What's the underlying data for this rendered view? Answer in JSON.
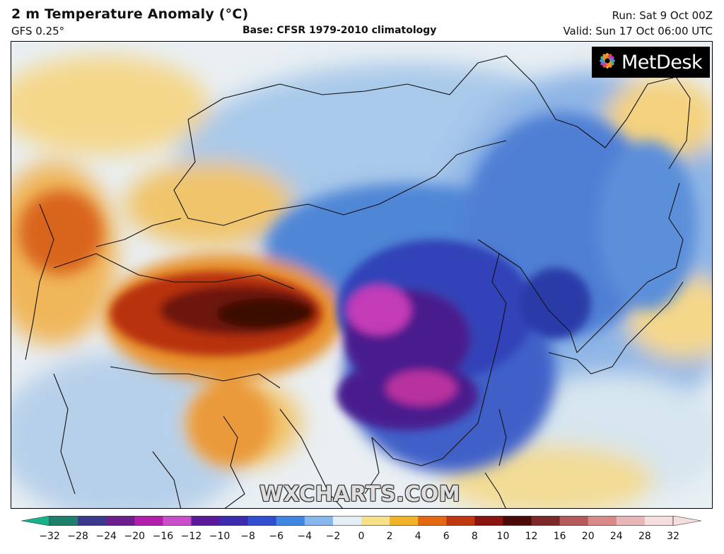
{
  "header": {
    "title": "2 m Temperature Anomaly (°C)",
    "model": "GFS 0.25°",
    "base": "Base: CFSR 1979-2010 climatology",
    "run": "Run: Sat 9 Oct 00Z",
    "valid": "Valid: Sun 17 Oct 06:00 UTC"
  },
  "logo": {
    "text": "MetDesk",
    "icon": "metdesk-flower-icon"
  },
  "watermark": "WXCHARTS.COM",
  "colorbar": {
    "ticks": [
      "−32",
      "−28",
      "−24",
      "−20",
      "−16",
      "−12",
      "−10",
      "−8",
      "−6",
      "−4",
      "−2",
      "0",
      "2",
      "4",
      "6",
      "8",
      "10",
      "12",
      "16",
      "20",
      "24",
      "28",
      "32"
    ],
    "colors": [
      "#18b28a",
      "#1f7f6a",
      "#3b3a8a",
      "#6a1f8a",
      "#b21fa8",
      "#c84fc8",
      "#5a1a9a",
      "#3d2bb0",
      "#2f4fd0",
      "#3f86e0",
      "#86b6ec",
      "#e6eef5",
      "#f6e08a",
      "#f0b32a",
      "#e36a12",
      "#c0380f",
      "#8a1410",
      "#4a0a08",
      "#7a2a2a",
      "#b55a5a",
      "#d88a8a",
      "#e8b6b6",
      "#f6dede"
    ]
  },
  "map": {
    "region": "East Asia",
    "colors": {
      "ocean": "#eef3f3",
      "warm_light": "#f5d78a",
      "warm_mid": "#e8932e",
      "warm_strong": "#b8330f",
      "warm_extreme": "#4e0c08",
      "cold_light": "#a9c9ea",
      "cold_mid": "#4f86d6",
      "cold_strong": "#3342b8",
      "cold_deep": "#4a1f8e",
      "cold_extreme": "#c43ab8"
    }
  }
}
